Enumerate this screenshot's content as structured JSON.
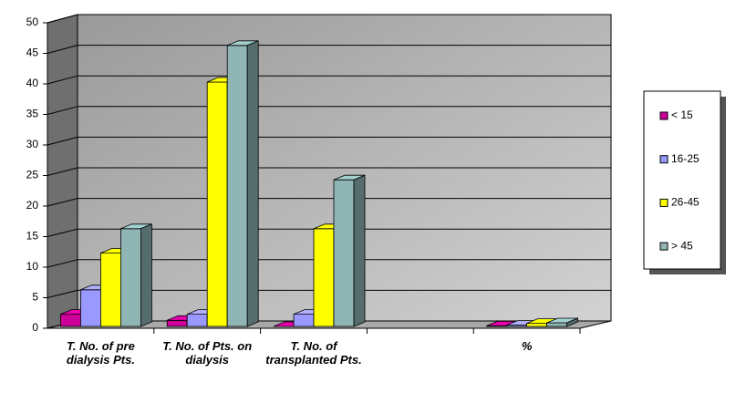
{
  "chart_data": {
    "type": "bar3d",
    "categories": [
      "T. No. of pre dialysis Pts.",
      "T. No. of Pts. on dialysis",
      "T. No. of transplanted Pts.",
      null,
      "%"
    ],
    "series": [
      {
        "name": "< 15",
        "color": "#cc0099",
        "values": [
          2,
          1,
          0,
          null,
          0.1
        ]
      },
      {
        "name": "16-25",
        "color": "#9999ff",
        "values": [
          6,
          2,
          2,
          null,
          0.2
        ]
      },
      {
        "name": "26-45",
        "color": "#ffff00",
        "values": [
          12,
          40,
          16,
          null,
          0.5
        ]
      },
      {
        "name": "> 45",
        "color": "#8fb5b5",
        "values": [
          16,
          46,
          24,
          null,
          0.6
        ]
      }
    ],
    "ylim": [
      0,
      50
    ],
    "yticks": [
      0,
      5,
      10,
      15,
      20,
      25,
      30,
      35,
      40,
      45,
      50
    ],
    "grid": true,
    "legend": "right"
  }
}
